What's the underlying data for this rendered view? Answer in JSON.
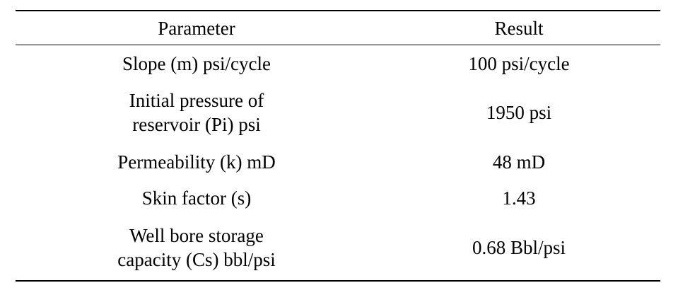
{
  "table": {
    "headers": {
      "parameter": "Parameter",
      "result": "Result"
    },
    "rows": [
      {
        "parameter": [
          "Slope (m) psi/cycle"
        ],
        "result": "100 psi/cycle"
      },
      {
        "parameter": [
          "Initial pressure of",
          "reservoir (Pi) psi"
        ],
        "result": "1950 psi"
      },
      {
        "parameter": [
          "Permeability (k) mD"
        ],
        "result": "48 mD"
      },
      {
        "parameter": [
          "Skin factor (s)"
        ],
        "result": "1.43"
      },
      {
        "parameter": [
          "Well bore storage",
          "capacity (Cs) bbl/psi"
        ],
        "result": "0.68 Bbl/psi"
      }
    ]
  }
}
